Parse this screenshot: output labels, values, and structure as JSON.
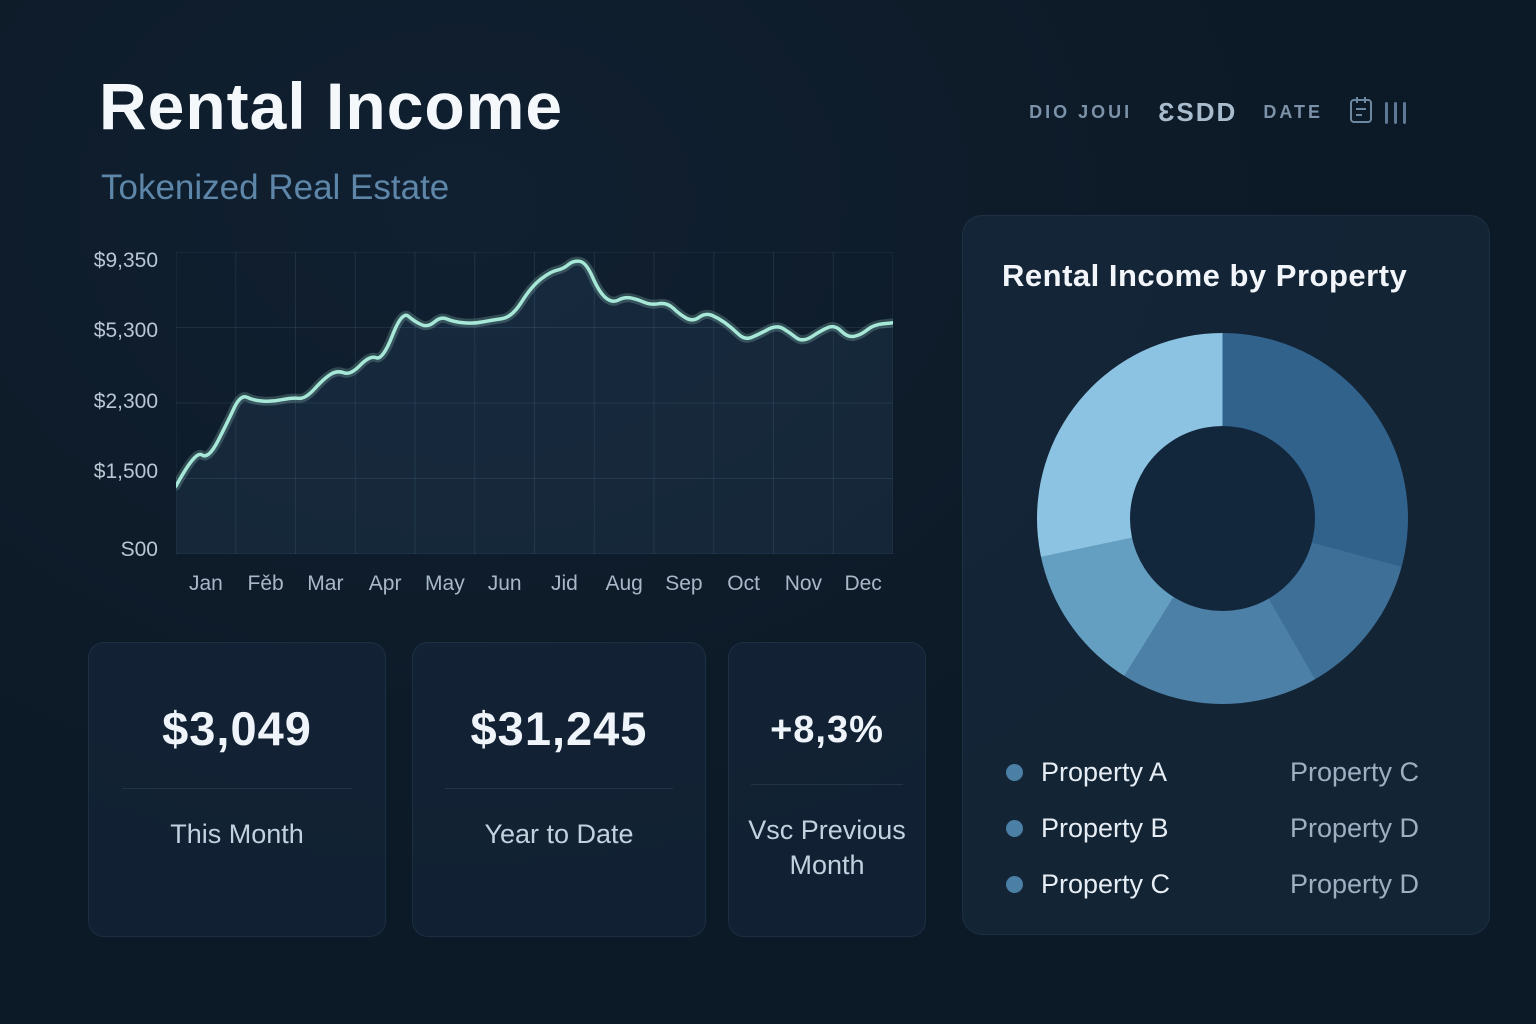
{
  "header": {
    "title": "Rental Income",
    "subtitle": "Tokenized Real Estate",
    "meta_left": "DIO JOUI",
    "meta_mid": "ƐSDD",
    "meta_right": "DATE"
  },
  "chart_data": [
    {
      "type": "line",
      "title": "Rental Income monthly trend",
      "line_color": "#a7e8d8",
      "grid": true,
      "x_tick_labels": [
        "Jan",
        "Fěb",
        "Mar",
        "Apr",
        "May",
        "Jun",
        "Jid",
        "Aug",
        "Sep",
        "Oct",
        "Nov",
        "Dec"
      ],
      "y_tick_labels": [
        "S00",
        "$1,500",
        "$2,300",
        "$5,300",
        "$9,350"
      ],
      "y_tick_values": [
        0,
        1500,
        2300,
        5300,
        9350
      ],
      "ylim": [
        0,
        9350
      ],
      "points": [
        [
          0.0,
          1350
        ],
        [
          0.3,
          1800
        ],
        [
          0.5,
          1700
        ],
        [
          0.8,
          2100
        ],
        [
          1.0,
          2650
        ],
        [
          1.2,
          2400
        ],
        [
          1.5,
          2350
        ],
        [
          1.8,
          2520
        ],
        [
          2.0,
          2450
        ],
        [
          2.3,
          3300
        ],
        [
          2.5,
          3600
        ],
        [
          2.7,
          3400
        ],
        [
          3.0,
          4200
        ],
        [
          3.2,
          4000
        ],
        [
          3.5,
          6200
        ],
        [
          3.7,
          5600
        ],
        [
          3.9,
          5300
        ],
        [
          4.1,
          5900
        ],
        [
          4.3,
          5600
        ],
        [
          4.6,
          5500
        ],
        [
          4.9,
          5700
        ],
        [
          5.2,
          5850
        ],
        [
          5.5,
          7500
        ],
        [
          5.8,
          8300
        ],
        [
          6.0,
          8450
        ],
        [
          6.15,
          8900
        ],
        [
          6.35,
          8800
        ],
        [
          6.55,
          7200
        ],
        [
          6.75,
          6600
        ],
        [
          6.95,
          6950
        ],
        [
          7.15,
          6800
        ],
        [
          7.35,
          6500
        ],
        [
          7.6,
          6650
        ],
        [
          7.8,
          6000
        ],
        [
          8.0,
          5600
        ],
        [
          8.2,
          6100
        ],
        [
          8.4,
          5800
        ],
        [
          8.6,
          5300
        ],
        [
          8.8,
          4800
        ],
        [
          9.0,
          5000
        ],
        [
          9.3,
          5450
        ],
        [
          9.5,
          5100
        ],
        [
          9.7,
          4700
        ],
        [
          10.0,
          5200
        ],
        [
          10.2,
          5450
        ],
        [
          10.4,
          4900
        ],
        [
          10.6,
          5000
        ],
        [
          10.8,
          5450
        ],
        [
          11.1,
          5550
        ]
      ]
    },
    {
      "type": "pie",
      "title": "Rental Income by Property",
      "donut": true,
      "legend_dot_color": "#4c7fa6",
      "segments": [
        {
          "label": "Property C",
          "value": 29.2,
          "color": "#31628c"
        },
        {
          "label": "Property D",
          "value": 12.5,
          "color": "#3e6f96"
        },
        {
          "label": "Property D",
          "value": 17.2,
          "color": "#4d80a6"
        },
        {
          "label": "Property B",
          "value": 12.8,
          "color": "#649ec0"
        },
        {
          "label": "Property A",
          "value": 28.3,
          "color": "#8cc3e2"
        }
      ],
      "legend_left": [
        "Property A",
        "Property B",
        "Property C"
      ],
      "legend_right": [
        "Property C",
        "Property D",
        "Property D"
      ]
    }
  ],
  "stats": [
    {
      "value": "$3,049",
      "label": "This Month"
    },
    {
      "value": "$31,245",
      "label": "Year to Date"
    },
    {
      "value": "+8,3%",
      "label": "Vsc Previous Month"
    }
  ]
}
